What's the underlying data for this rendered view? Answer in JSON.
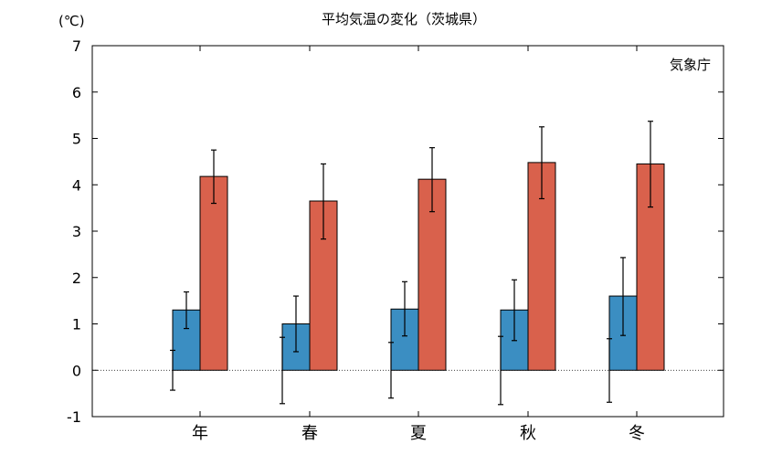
{
  "chart_data": {
    "type": "bar",
    "title": "平均気温の変化（茨城県）",
    "unit_label": "(℃)",
    "source": "気象庁",
    "categories": [
      "年",
      "春",
      "夏",
      "秋",
      "冬"
    ],
    "ylim": [
      -1,
      7
    ],
    "yticks": [
      "7",
      "6",
      "5",
      "4",
      "3",
      "2",
      "1",
      "0",
      "-1"
    ],
    "grid": false,
    "baseline_series": {
      "values": [
        0,
        0,
        0,
        0,
        0
      ],
      "err_low": [
        -0.43,
        -0.72,
        -0.6,
        -0.74,
        -0.69
      ],
      "err_high": [
        0.43,
        0.71,
        0.6,
        0.73,
        0.68
      ],
      "color": "#000000"
    },
    "series": [
      {
        "values": [
          1.3,
          1.0,
          1.32,
          1.3,
          1.6
        ],
        "err_low": [
          0.9,
          0.4,
          0.74,
          0.64,
          0.75
        ],
        "err_high": [
          1.69,
          1.6,
          1.91,
          1.95,
          2.43
        ],
        "color": "#3b8ec2"
      },
      {
        "values": [
          4.18,
          3.65,
          4.12,
          4.48,
          4.45
        ],
        "err_low": [
          3.6,
          2.83,
          3.42,
          3.7,
          3.52
        ],
        "err_high": [
          4.75,
          4.45,
          4.8,
          5.25,
          5.37
        ],
        "color": "#d9614c"
      }
    ]
  }
}
